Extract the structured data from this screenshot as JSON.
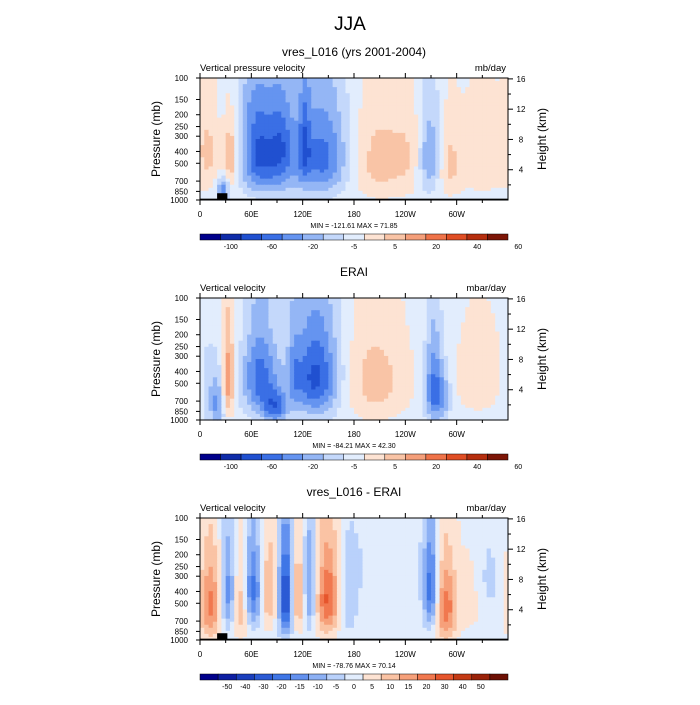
{
  "title": "JJA",
  "colors": {
    "levels10": [
      "#00008b",
      "#0f2ca9",
      "#2050d0",
      "#3a6fe5",
      "#6594f0",
      "#94b6f5",
      "#c4d8fb",
      "#e2edfd",
      "#fde3d3",
      "#f9c4a6",
      "#f59f7a",
      "#ef7349",
      "#e04e24",
      "#b62e0e",
      "#7d1607"
    ],
    "levels13": [
      "#00008b",
      "#0d1fa3",
      "#1a3fbd",
      "#2b5ad4",
      "#3f76e6",
      "#6391ef",
      "#8cb0f4",
      "#b9d1fb",
      "#e2edfd",
      "#fde3d3",
      "#fac3a4",
      "#f6a07a",
      "#f1784f",
      "#e6552c",
      "#c43a14",
      "#9a2209",
      "#6d1004"
    ]
  },
  "chart_data": [
    {
      "type": "heatmap",
      "title": "vres_L016 (yrs 2001-2004)",
      "left_label": "Vertical pressure velocity",
      "right_label": "mb/day",
      "ylabel": "Pressure (mb)",
      "y2label": "Height (km)",
      "xticks": [
        "0",
        "60E",
        "120E",
        "180",
        "120W",
        "60W"
      ],
      "x_values": [
        0,
        60,
        120,
        180,
        240,
        300
      ],
      "xlim": [
        0,
        360
      ],
      "pressure_ticks": [
        "100",
        "150",
        "200",
        "250",
        "300",
        "400",
        "500",
        "700",
        "850",
        "1000"
      ],
      "pressure_values": [
        100,
        150,
        200,
        250,
        300,
        400,
        500,
        700,
        850,
        1000
      ],
      "ylim": [
        100,
        1000
      ],
      "height_ticks": [
        "4",
        "8",
        "12",
        "16"
      ],
      "height_values": [
        4,
        8,
        12,
        16
      ],
      "stats": "MIN = -121.61  MAX =  71.85",
      "min": -121.61,
      "max": 71.85,
      "colorbar_ticks": [
        "-100",
        "-60",
        "-20",
        "-5",
        "5",
        "20",
        "40",
        "60"
      ],
      "colorbar_tick_levels": [
        1,
        3,
        5,
        7,
        9,
        11,
        13,
        15
      ],
      "colorbar_levels": 15,
      "palette": "levels10",
      "features": [
        {
          "lon": 10,
          "p": 400,
          "sx": 10,
          "sp": 280,
          "amp": 25
        },
        {
          "lon": 36,
          "p": 450,
          "sx": 6,
          "sp": 250,
          "amp": 38
        },
        {
          "lon": 27,
          "p": 820,
          "sx": 5,
          "sp": 120,
          "amp": -60
        },
        {
          "lon": 68,
          "p": 380,
          "sx": 14,
          "sp": 230,
          "amp": -70
        },
        {
          "lon": 95,
          "p": 350,
          "sx": 11,
          "sp": 210,
          "amp": -55
        },
        {
          "lon": 82,
          "p": 700,
          "sx": 22,
          "sp": 180,
          "amp": -25
        },
        {
          "lon": 145,
          "p": 450,
          "sx": 22,
          "sp": 270,
          "amp": -55
        },
        {
          "lon": 122,
          "p": 350,
          "sx": 5,
          "sp": 220,
          "amp": -40
        },
        {
          "lon": 130,
          "p": 400,
          "sx": 25,
          "sp": 350,
          "amp": -12
        },
        {
          "lon": 210,
          "p": 480,
          "sx": 28,
          "sp": 300,
          "amp": 32
        },
        {
          "lon": 268,
          "p": 450,
          "sx": 10,
          "sp": 260,
          "amp": -50
        },
        {
          "lon": 290,
          "p": 520,
          "sx": 10,
          "sp": 260,
          "amp": 28
        },
        {
          "lon": 330,
          "p": 450,
          "sx": 20,
          "sp": 280,
          "amp": 22
        },
        {
          "lon": 250,
          "p": 400,
          "sx": 14,
          "sp": 300,
          "amp": 14
        },
        {
          "lon": 45,
          "p": 160,
          "sx": 20,
          "sp": 60,
          "amp": -8
        }
      ],
      "topography": [
        {
          "lon_start": 20,
          "lon_end": 32,
          "p_top": 880
        },
        {
          "lon_start": 0,
          "lon_end": 360,
          "p_top": 975
        }
      ]
    },
    {
      "type": "heatmap",
      "title": "ERAI",
      "left_label": "Vertical velocity",
      "right_label": "mbar/day",
      "ylabel": "Pressure (mb)",
      "y2label": "Height (km)",
      "xticks": [
        "0",
        "60E",
        "120E",
        "180",
        "120W",
        "60W"
      ],
      "x_values": [
        0,
        60,
        120,
        180,
        240,
        300
      ],
      "xlim": [
        0,
        360
      ],
      "pressure_ticks": [
        "100",
        "150",
        "200",
        "250",
        "300",
        "400",
        "500",
        "700",
        "850",
        "1000"
      ],
      "pressure_values": [
        100,
        150,
        200,
        250,
        300,
        400,
        500,
        700,
        850,
        1000
      ],
      "ylim": [
        100,
        1000
      ],
      "height_ticks": [
        "4",
        "8",
        "12",
        "16"
      ],
      "height_values": [
        4,
        8,
        12,
        16
      ],
      "stats": "MIN = -84.21  MAX =  42.30",
      "min": -84.21,
      "max": 42.3,
      "colorbar_ticks": [
        "-100",
        "-60",
        "-20",
        "-5",
        "5",
        "20",
        "40",
        "60"
      ],
      "colorbar_tick_levels": [
        1,
        3,
        5,
        7,
        9,
        11,
        13,
        15
      ],
      "colorbar_levels": 15,
      "palette": "levels10",
      "features": [
        {
          "lon": 33,
          "p": 480,
          "sx": 5,
          "sp": 270,
          "amp": 38
        },
        {
          "lon": 20,
          "p": 750,
          "sx": 6,
          "sp": 250,
          "amp": -30
        },
        {
          "lon": 8,
          "p": 500,
          "sx": 8,
          "sp": 350,
          "amp": -10
        },
        {
          "lon": 70,
          "p": 450,
          "sx": 14,
          "sp": 280,
          "amp": -45
        },
        {
          "lon": 88,
          "p": 800,
          "sx": 10,
          "sp": 180,
          "amp": -40
        },
        {
          "lon": 135,
          "p": 450,
          "sx": 20,
          "sp": 290,
          "amp": -55
        },
        {
          "lon": 110,
          "p": 400,
          "sx": 5,
          "sp": 250,
          "amp": -15
        },
        {
          "lon": 205,
          "p": 480,
          "sx": 28,
          "sp": 320,
          "amp": 22
        },
        {
          "lon": 273,
          "p": 560,
          "sx": 7,
          "sp": 300,
          "amp": -45
        },
        {
          "lon": 285,
          "p": 650,
          "sx": 6,
          "sp": 200,
          "amp": -25
        },
        {
          "lon": 325,
          "p": 450,
          "sx": 22,
          "sp": 300,
          "amp": 12
        },
        {
          "lon": 55,
          "p": 180,
          "sx": 40,
          "sp": 60,
          "amp": 4
        }
      ],
      "topography": []
    },
    {
      "type": "heatmap",
      "title": "vres_L016 - ERAI",
      "left_label": "Vertical velocity",
      "right_label": "mbar/day",
      "ylabel": "Pressure (mb)",
      "y2label": "Height (km)",
      "xticks": [
        "0",
        "60E",
        "120E",
        "180",
        "120W",
        "60W"
      ],
      "x_values": [
        0,
        60,
        120,
        180,
        240,
        300
      ],
      "xlim": [
        0,
        360
      ],
      "pressure_ticks": [
        "100",
        "150",
        "200",
        "250",
        "300",
        "400",
        "500",
        "700",
        "850",
        "1000"
      ],
      "pressure_values": [
        100,
        150,
        200,
        250,
        300,
        400,
        500,
        700,
        850,
        1000
      ],
      "ylim": [
        100,
        1000
      ],
      "height_ticks": [
        "4",
        "8",
        "12",
        "16"
      ],
      "height_values": [
        4,
        8,
        12,
        16
      ],
      "stats": "MIN = -78.76  MAX =  70.14",
      "min": -78.76,
      "max": 70.14,
      "colorbar_ticks": [
        "-50",
        "-40",
        "-30",
        "-20",
        "-15",
        "-10",
        "-5",
        "0",
        "5",
        "10",
        "15",
        "20",
        "30",
        "40",
        "50"
      ],
      "colorbar_tick_levels": [
        1,
        2,
        3,
        4,
        5,
        6,
        7,
        8,
        9,
        10,
        11,
        12,
        13,
        14,
        15
      ],
      "colorbar_levels": 17,
      "palette": "levels13",
      "features": [
        {
          "lon": 12,
          "p": 520,
          "sx": 9,
          "sp": 300,
          "amp": 35
        },
        {
          "lon": 33,
          "p": 420,
          "sx": 6,
          "sp": 250,
          "amp": -30
        },
        {
          "lon": 48,
          "p": 500,
          "sx": 7,
          "sp": 280,
          "amp": 25
        },
        {
          "lon": 62,
          "p": 400,
          "sx": 8,
          "sp": 230,
          "amp": -40
        },
        {
          "lon": 80,
          "p": 400,
          "sx": 8,
          "sp": 260,
          "amp": 25
        },
        {
          "lon": 100,
          "p": 450,
          "sx": 6,
          "sp": 280,
          "amp": -55
        },
        {
          "lon": 115,
          "p": 430,
          "sx": 6,
          "sp": 260,
          "amp": 30
        },
        {
          "lon": 128,
          "p": 400,
          "sx": 6,
          "sp": 260,
          "amp": -30
        },
        {
          "lon": 150,
          "p": 450,
          "sx": 11,
          "sp": 280,
          "amp": 45
        },
        {
          "lon": 170,
          "p": 500,
          "sx": 10,
          "sp": 300,
          "amp": -12
        },
        {
          "lon": 270,
          "p": 400,
          "sx": 6,
          "sp": 250,
          "amp": -40
        },
        {
          "lon": 287,
          "p": 550,
          "sx": 9,
          "sp": 300,
          "amp": 38
        },
        {
          "lon": 318,
          "p": 450,
          "sx": 14,
          "sp": 260,
          "amp": 10
        },
        {
          "lon": 335,
          "p": 350,
          "sx": 10,
          "sp": 200,
          "amp": -10
        },
        {
          "lon": 200,
          "p": 250,
          "sx": 60,
          "sp": 120,
          "amp": -4
        }
      ],
      "topography": [
        {
          "lon_start": 20,
          "lon_end": 32,
          "p_top": 880
        },
        {
          "lon_start": 0,
          "lon_end": 360,
          "p_top": 975
        }
      ]
    }
  ]
}
